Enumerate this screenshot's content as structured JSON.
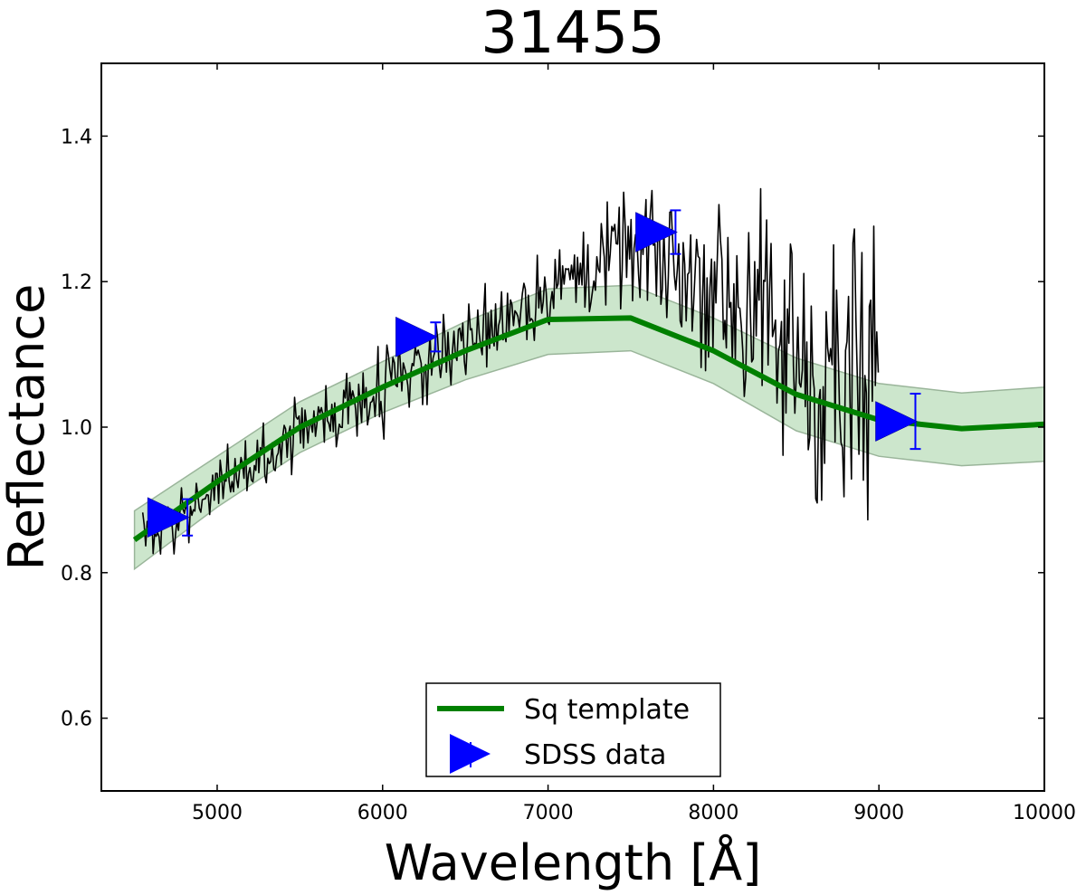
{
  "chart_data": {
    "type": "line",
    "title": "31455",
    "xlabel": "Wavelength [Å]",
    "ylabel": "Reflectance",
    "xlim": [
      4300,
      10000
    ],
    "ylim": [
      0.5,
      1.5
    ],
    "x_ticks": [
      5000,
      6000,
      7000,
      8000,
      9000,
      10000
    ],
    "y_ticks": [
      0.6,
      0.8,
      1.0,
      1.2,
      1.4
    ],
    "grid": false,
    "legend_position": "lower-center",
    "series": [
      {
        "name": "Sq template",
        "kind": "line",
        "color": "#008000",
        "x": [
          4500,
          5000,
          5500,
          6000,
          6500,
          7000,
          7500,
          8000,
          8500,
          9000,
          9500,
          10000
        ],
        "y": [
          0.845,
          0.925,
          1.0,
          1.055,
          1.105,
          1.148,
          1.15,
          1.105,
          1.045,
          1.01,
          0.998,
          1.004
        ],
        "band_lower": [
          0.805,
          0.89,
          0.965,
          1.02,
          1.065,
          1.1,
          1.105,
          1.06,
          0.995,
          0.96,
          0.947,
          0.953
        ],
        "band_upper": [
          0.885,
          0.96,
          1.035,
          1.09,
          1.145,
          1.19,
          1.195,
          1.15,
          1.095,
          1.06,
          1.047,
          1.055
        ],
        "band_color": "#cce6cc"
      },
      {
        "name": "SDSS data",
        "kind": "points",
        "marker": "triangle-right",
        "color": "#0000ff",
        "x": [
          4700,
          6200,
          7650,
          9100
        ],
        "y": [
          0.876,
          1.124,
          1.268,
          1.008
        ],
        "yerr": [
          0.025,
          0.02,
          0.03,
          0.038
        ]
      },
      {
        "name": "spectrum",
        "kind": "noisy-line",
        "color": "#000000",
        "x_range": [
          4550,
          9000
        ],
        "baseline_x": [
          4550,
          5000,
          5500,
          6000,
          6500,
          7000,
          7500,
          8000,
          8500,
          9000
        ],
        "baseline_y": [
          0.84,
          0.915,
          0.99,
          1.06,
          1.125,
          1.185,
          1.245,
          1.2,
          1.1,
          1.02
        ],
        "noise_x": [
          4550,
          6500,
          7500,
          8200,
          8700,
          9000
        ],
        "noise_amp": [
          0.02,
          0.025,
          0.035,
          0.07,
          0.1,
          0.12
        ]
      }
    ]
  },
  "legend": {
    "items": [
      {
        "label": "Sq template"
      },
      {
        "label": "SDSS data"
      }
    ]
  }
}
